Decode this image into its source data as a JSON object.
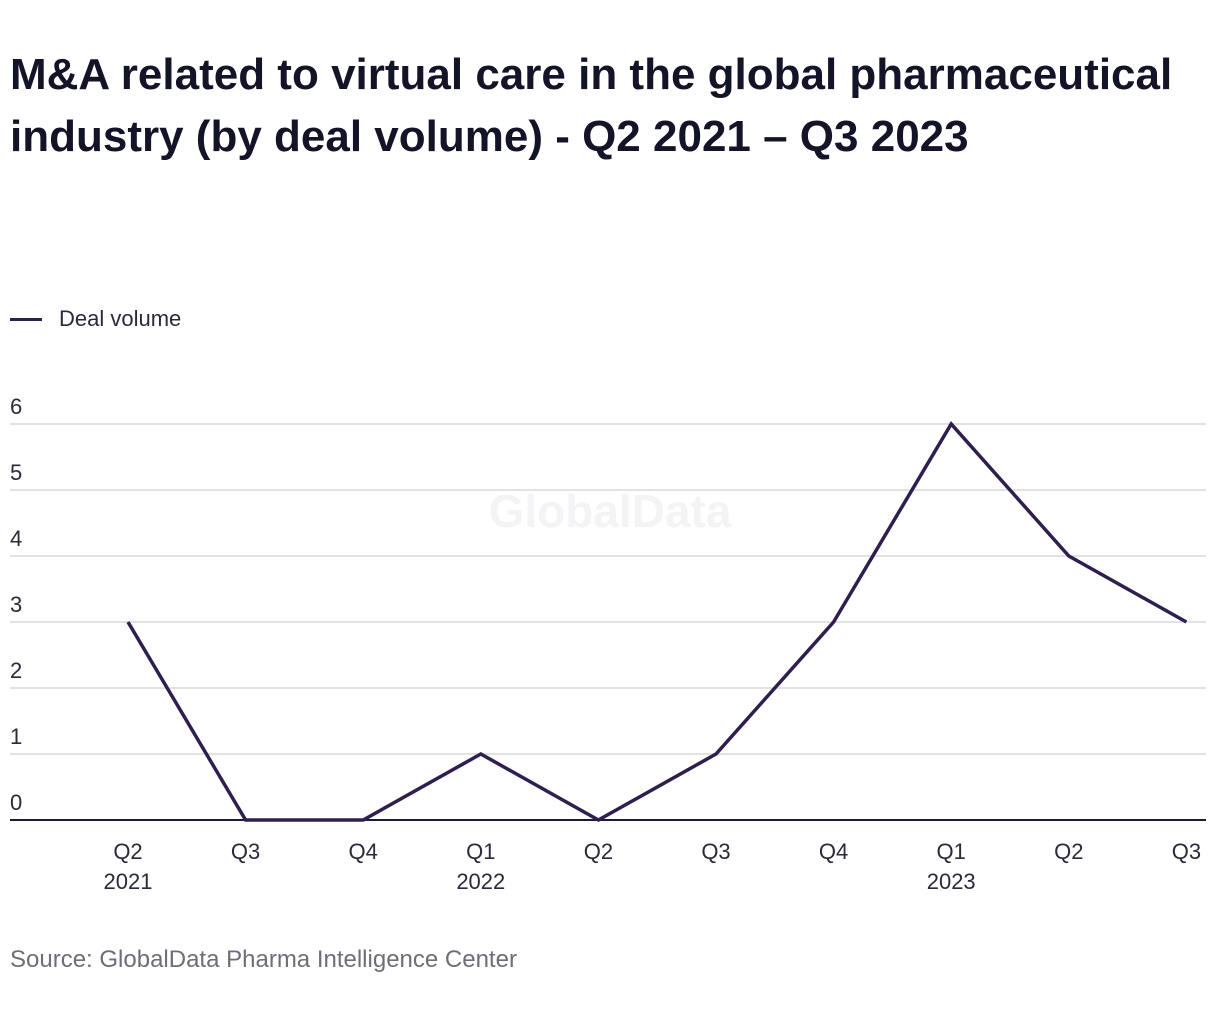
{
  "title": "M&A related to virtual care in the global pharmaceutical industry (by deal volume) - Q2 2021 – Q3 2023",
  "legend": {
    "label": "Deal volume"
  },
  "source": "Source: GlobalData Pharma Intelligence Center",
  "watermark": "GlobalData",
  "colors": {
    "line": "#2e1f4e",
    "grid": "#d9d9d9",
    "axis": "#1c1a33"
  },
  "chart_data": {
    "type": "line",
    "title": "M&A related to virtual care in the global pharmaceutical industry (by deal volume) - Q2 2021 – Q3 2023",
    "categories": [
      "Q2 2021",
      "Q3 2021",
      "Q4 2021",
      "Q1 2022",
      "Q2 2022",
      "Q3 2022",
      "Q4 2022",
      "Q1 2023",
      "Q2 2023",
      "Q3 2023"
    ],
    "tick_labels": [
      [
        "Q2",
        "2021"
      ],
      [
        "Q3",
        ""
      ],
      [
        "Q4",
        ""
      ],
      [
        "Q1",
        "2022"
      ],
      [
        "Q2",
        ""
      ],
      [
        "Q3",
        ""
      ],
      [
        "Q4",
        ""
      ],
      [
        "Q1",
        "2023"
      ],
      [
        "Q2",
        ""
      ],
      [
        "Q3",
        ""
      ]
    ],
    "series": [
      {
        "name": "Deal volume",
        "values": [
          3,
          0,
          0,
          1,
          0,
          1,
          3,
          6,
          4,
          3
        ]
      }
    ],
    "y_ticks": [
      0,
      1,
      2,
      3,
      4,
      5,
      6
    ],
    "ylim": [
      0,
      6
    ],
    "xlabel": "",
    "ylabel": "",
    "grid": true,
    "legend_position": "top-left"
  }
}
